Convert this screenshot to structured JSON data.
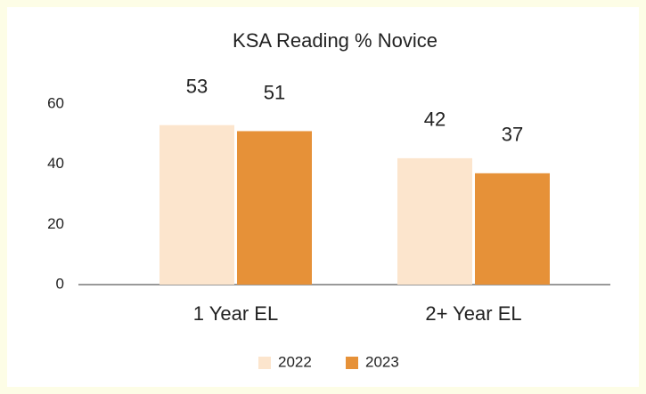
{
  "chart_data": {
    "type": "bar",
    "title": "KSA Reading % Novice",
    "categories": [
      "1 Year EL",
      "2+ Year EL"
    ],
    "series": [
      {
        "name": "2022",
        "color": "#fce5cd",
        "values": [
          53,
          42
        ]
      },
      {
        "name": "2023",
        "color": "#e69138",
        "values": [
          51,
          37
        ]
      }
    ],
    "ylim": [
      0,
      60
    ],
    "yticks": [
      0,
      20,
      40,
      60
    ],
    "grid": false,
    "legend": "bottom"
  }
}
